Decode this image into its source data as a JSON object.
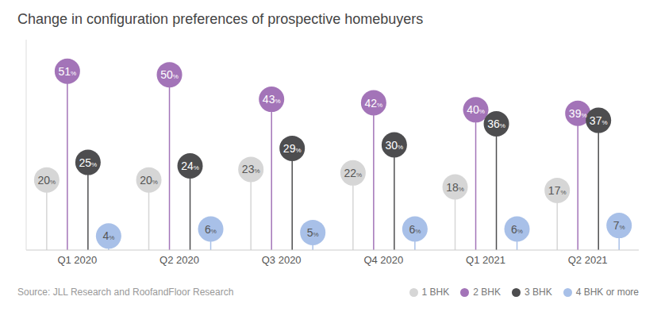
{
  "chart_data": {
    "type": "lollipop",
    "title": "Change in configuration preferences of prospective homebuyers",
    "annotations": [
      "Source: JLL Research and RoofandFloor Research"
    ],
    "categories": [
      "Q1 2020",
      "Q2 2020",
      "Q3 2020",
      "Q4 2020",
      "Q1 2021",
      "Q2 2021"
    ],
    "series": [
      {
        "name": "1 BHK",
        "color": "#d6d6d6",
        "values": [
          20,
          20,
          23,
          22,
          18,
          17
        ],
        "value_labels": [
          "20%",
          "20%",
          "23%",
          "22%",
          "18%",
          "17%"
        ]
      },
      {
        "name": "2 BHK",
        "color": "#a374b8",
        "values": [
          51,
          50,
          43,
          42,
          40,
          39
        ],
        "value_labels": [
          "51%",
          "50%",
          "43%",
          "42%",
          "40%",
          "39%"
        ]
      },
      {
        "name": "3 BHK",
        "color": "#4d4d4f",
        "values": [
          25,
          24,
          29,
          30,
          36,
          37
        ],
        "value_labels": [
          "25%",
          "24%",
          "29%",
          "30%",
          "36%",
          "37%"
        ]
      },
      {
        "name": "4 BHK or more",
        "color": "#a8c0e8",
        "values": [
          4,
          6,
          5,
          6,
          6,
          7
        ],
        "value_labels": [
          "4%",
          "6%",
          "5%",
          "6%",
          "6%",
          "7%"
        ]
      }
    ],
    "ylim": [
      0,
      60
    ],
    "grid": false,
    "legend": "bottom right",
    "data_labels": true,
    "tick_labels": "x"
  }
}
